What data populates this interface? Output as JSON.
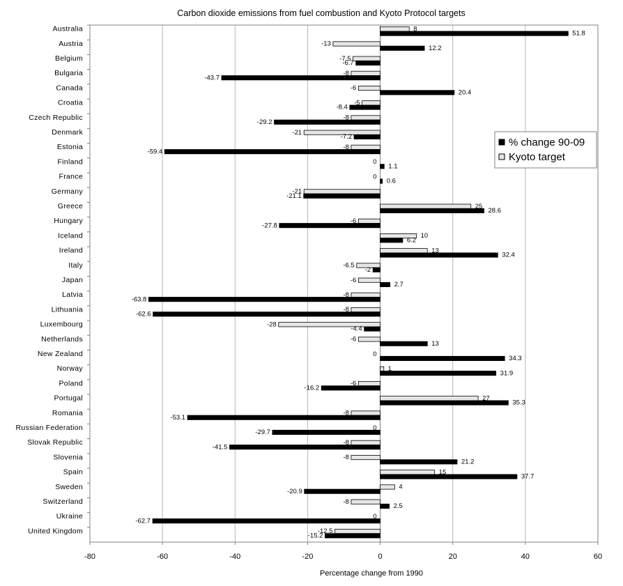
{
  "chart_data": {
    "type": "bar",
    "orientation": "horizontal",
    "title": "Carbon dioxide emissions from fuel combustion and Kyoto Protocol targets",
    "xlabel": "Percentage change from 1990",
    "ylabel": "",
    "xlim": [
      -80,
      60
    ],
    "xticks": [
      -80,
      -60,
      -40,
      -20,
      0,
      20,
      40,
      60
    ],
    "grid": true,
    "legend_position": "right",
    "categories": [
      "Australia",
      "Austria",
      "Belgium",
      "Bulgaria",
      "Canada",
      "Croatia",
      "Czech Republic",
      "Denmark",
      "Estonia",
      "Finland",
      "France",
      "Germany",
      "Greece",
      "Hungary",
      "Iceland",
      "Ireland",
      "Italy",
      "Japan",
      "Latvia",
      "Lithuania",
      "Luxembourg",
      "Netherlands",
      "New Zealand",
      "Norway",
      "Poland",
      "Portugal",
      "Romania",
      "Russian Federation",
      "Slovak Republic",
      "Slovenia",
      "Spain",
      "Sweden",
      "Switzerland",
      "Ukraine",
      "United Kingdom"
    ],
    "series": [
      {
        "name": "Kyoto target",
        "color": "#e6e6e6",
        "values": [
          8,
          -13,
          -7.5,
          -8,
          -6,
          -5,
          -8,
          -21,
          -8,
          0,
          0,
          -21,
          25,
          -6,
          10,
          13,
          -6.5,
          -6,
          -8,
          -8,
          -28,
          -6,
          0,
          1,
          -6,
          27,
          -8,
          0,
          -8,
          -8,
          15,
          4,
          -8,
          0,
          -12.5
        ]
      },
      {
        "name": "% change 90-09",
        "color": "#000000",
        "values": [
          51.8,
          12.2,
          -6.7,
          -43.7,
          20.4,
          -8.4,
          -29.2,
          -7.2,
          -59.4,
          1.1,
          0.6,
          -21.1,
          28.6,
          -27.8,
          6.2,
          32.4,
          -2,
          2.7,
          -63.8,
          -62.6,
          -4.4,
          13,
          34.3,
          31.9,
          -16.2,
          35.3,
          -53.1,
          -29.7,
          -41.5,
          21.2,
          37.7,
          -20.9,
          2.5,
          -62.7,
          -15.2
        ]
      }
    ],
    "legend_order": [
      "% change 90-09",
      "Kyoto target"
    ]
  }
}
